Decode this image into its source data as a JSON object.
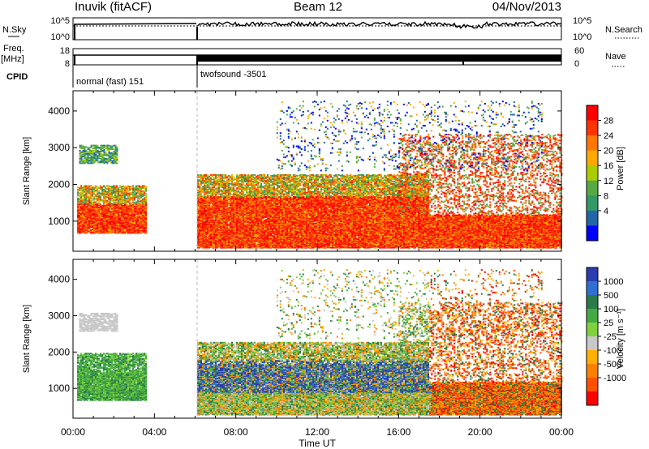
{
  "header": {
    "station": "Inuvik (fitACF)",
    "beam": "Beam 12",
    "date": "04/Nov/2013"
  },
  "top_panels": {
    "nsky_label": "N.Sky",
    "nsky_ticks": [
      "10^5",
      "10^0"
    ],
    "nsearch_label": "N.Search",
    "nsearch_ticks": [
      "10^5",
      "10^0"
    ],
    "freq_label_line1": "Freq.",
    "freq_label_line2": "[MHz]",
    "freq_ticks": [
      "18",
      "8"
    ],
    "nave_label": "Nave",
    "nave_ticks": [
      "60",
      "0"
    ],
    "cpid_label": "CPID",
    "cpid_modes": [
      "normal (fast) 151",
      "twofsound -3501"
    ],
    "cpid_change_hour": 6.1
  },
  "colorbars": {
    "power_label": "Power [dB]",
    "power_ticks": [
      "28",
      "24",
      "20",
      "16",
      "12",
      "8",
      "4"
    ],
    "power_colors": [
      "#ff0000",
      "#ff3300",
      "#ff7700",
      "#ffaa00",
      "#aacc00",
      "#55aa44",
      "#339966",
      "#2266aa",
      "#0000ff"
    ],
    "velocity_label": "Velocity [m s⁻¹]",
    "velocity_ticks": [
      "1000",
      "500",
      "100",
      "25",
      "-25",
      "-100",
      "-500",
      "-1000"
    ],
    "velocity_colors": [
      "#2a3cb0",
      "#2f6fd0",
      "#2a7a4a",
      "#44aa44",
      "#7fd23c",
      "#c8c8c8",
      "#ffb000",
      "#ff8000",
      "#ff5000",
      "#ff0000"
    ]
  },
  "chart_data": [
    {
      "type": "heatmap",
      "name": "power",
      "ylabel": "Slant Range [km]",
      "xlabel": "Time UT",
      "x_ticks": [
        "00:00",
        "04:00",
        "08:00",
        "12:00",
        "16:00",
        "20:00",
        "00:00"
      ],
      "y_ticks": [
        "1000",
        "2000",
        "3000",
        "4000"
      ],
      "xlim_hours": [
        0,
        24
      ],
      "ylim_km": [
        180,
        4550
      ],
      "scatter_regions": [
        {
          "t": [
            0.2,
            3.6
          ],
          "r": [
            700,
            1500
          ],
          "level": "high"
        },
        {
          "t": [
            0.2,
            3.6
          ],
          "r": [
            1500,
            2000
          ],
          "level": "mid"
        },
        {
          "t": [
            0.3,
            2.2
          ],
          "r": [
            2600,
            3100
          ],
          "level": "low"
        },
        {
          "t": [
            6.1,
            24.0
          ],
          "r": [
            300,
            700
          ],
          "level": "high"
        },
        {
          "t": [
            6.1,
            17.5
          ],
          "r": [
            700,
            1700
          ],
          "level": "high"
        },
        {
          "t": [
            6.1,
            17.5
          ],
          "r": [
            1700,
            2300
          ],
          "level": "mid"
        },
        {
          "t": [
            17.5,
            24.0
          ],
          "r": [
            400,
            1200
          ],
          "level": "high"
        },
        {
          "t": [
            16.0,
            24.0
          ],
          "r": [
            1200,
            3400
          ],
          "level": "streaks"
        },
        {
          "t": [
            10.0,
            23.0
          ],
          "r": [
            2400,
            4300
          ],
          "level": "sparse"
        }
      ]
    },
    {
      "type": "heatmap",
      "name": "velocity",
      "ylabel": "Slant Range [km]",
      "xlabel": "Time UT",
      "x_ticks": [
        "00:00",
        "04:00",
        "08:00",
        "12:00",
        "16:00",
        "20:00",
        "00:00"
      ],
      "y_ticks": [
        "1000",
        "2000",
        "3000",
        "4000"
      ],
      "xlim_hours": [
        0,
        24
      ],
      "ylim_km": [
        180,
        4550
      ]
    }
  ]
}
